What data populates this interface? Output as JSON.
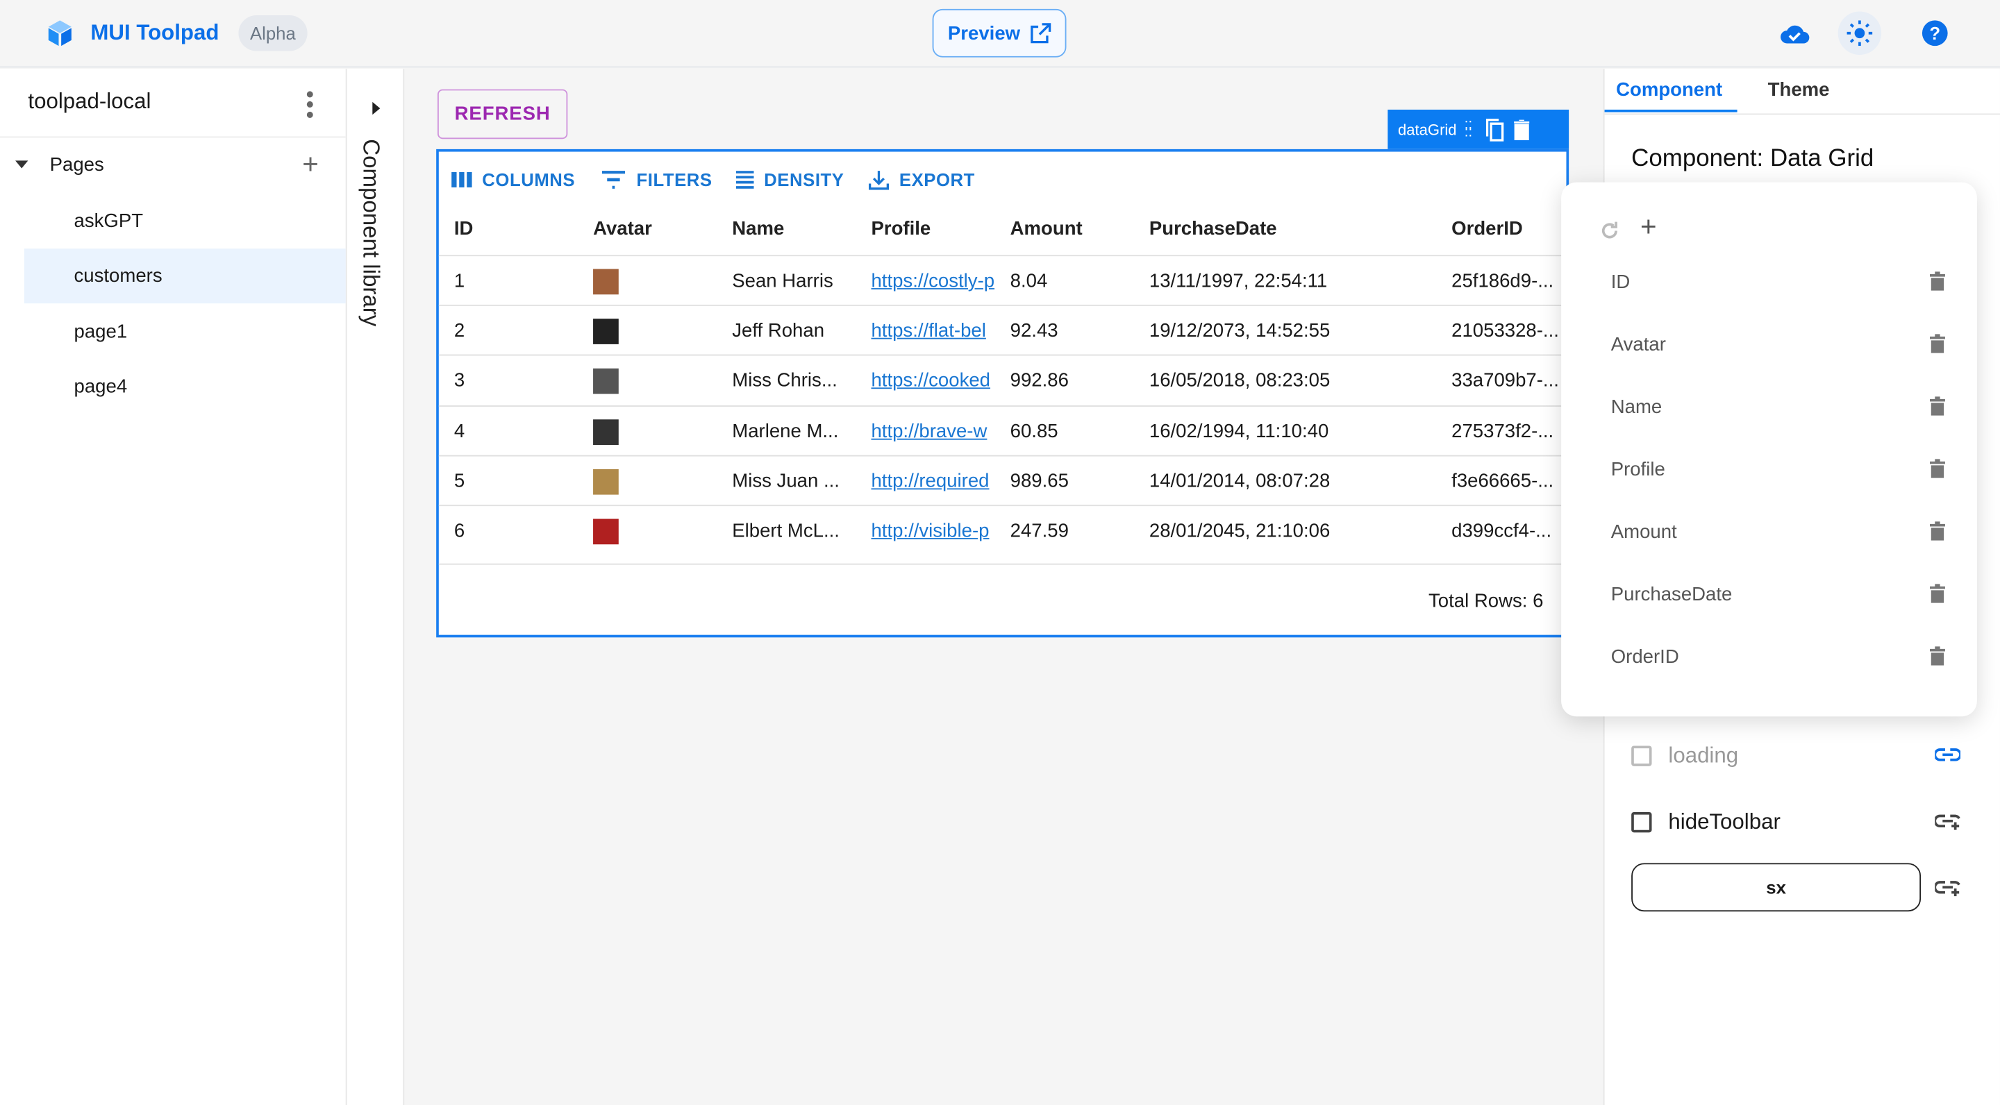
{
  "header": {
    "brand": "MUI Toolpad",
    "badge": "Alpha",
    "preview": "Preview"
  },
  "sidebar": {
    "project": "toolpad-local",
    "section": "Pages",
    "pages": [
      {
        "label": "askGPT"
      },
      {
        "label": "customers",
        "selected": true
      },
      {
        "label": "page1"
      },
      {
        "label": "page4"
      }
    ]
  },
  "library": {
    "label": "Component library"
  },
  "canvas": {
    "refresh": "REFRESH",
    "chip": "dataGrid",
    "toolbar": {
      "columns": "COLUMNS",
      "filters": "FILTERS",
      "density": "DENSITY",
      "export": "EXPORT"
    },
    "columns": [
      "ID",
      "Avatar",
      "Name",
      "Profile",
      "Amount",
      "PurchaseDate",
      "OrderID"
    ],
    "rows": [
      {
        "id": "1",
        "name": "Sean Harris",
        "profile": "https://costly-p",
        "amount": "8.04",
        "date": "13/11/1997, 22:54:11",
        "order": "25f186d9-...",
        "avatar": "#a0603a"
      },
      {
        "id": "2",
        "name": "Jeff Rohan",
        "profile": "https://flat-bel",
        "amount": "92.43",
        "date": "19/12/2073, 14:52:55",
        "order": "21053328-...",
        "avatar": "#222222"
      },
      {
        "id": "3",
        "name": "Miss Chris...",
        "profile": "https://cooked",
        "amount": "992.86",
        "date": "16/05/2018, 08:23:05",
        "order": "33a709b7-...",
        "avatar": "#555555"
      },
      {
        "id": "4",
        "name": "Marlene M...",
        "profile": "http://brave-w",
        "amount": "60.85",
        "date": "16/02/1994, 11:10:40",
        "order": "275373f2-...",
        "avatar": "#333333"
      },
      {
        "id": "5",
        "name": "Miss Juan ...",
        "profile": "http://required",
        "amount": "989.65",
        "date": "14/01/2014, 08:07:28",
        "order": "f3e66665-...",
        "avatar": "#b08a4a"
      },
      {
        "id": "6",
        "name": "Elbert McL...",
        "profile": "http://visible-p",
        "amount": "247.59",
        "date": "28/01/2045, 21:10:06",
        "order": "d399ccf4-...",
        "avatar": "#b02020"
      }
    ],
    "total": "Total Rows: 6"
  },
  "right": {
    "tabs": [
      "Component",
      "Theme"
    ],
    "active_tab": "Component",
    "title": "Component: Data Grid",
    "column_list": [
      "ID",
      "Avatar",
      "Name",
      "Profile",
      "Amount",
      "PurchaseDate",
      "OrderID"
    ],
    "loading": "loading",
    "hideToolbar": "hideToolbar",
    "sx": "sx"
  },
  "colors": {
    "accent": "#0b6fe8",
    "selection": "#1a7ff0",
    "refresh": "#9c27b0"
  }
}
